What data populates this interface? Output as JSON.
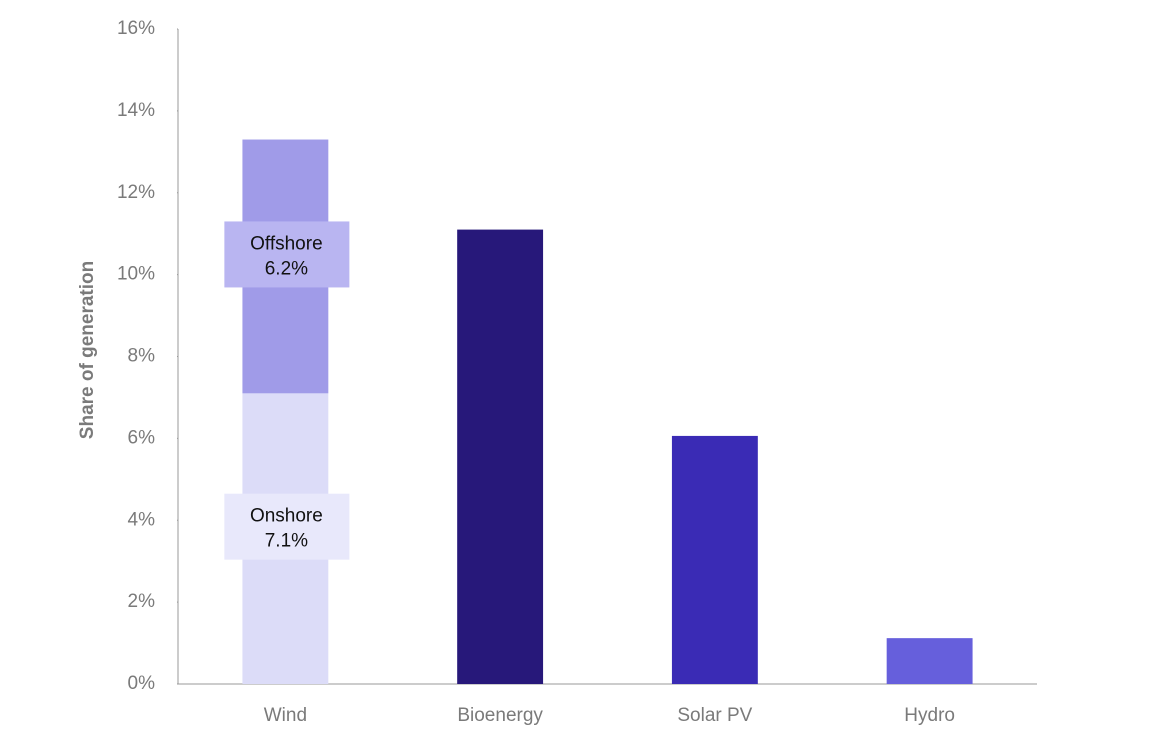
{
  "chart_data": {
    "type": "bar",
    "stacked": true,
    "y_label": "Share of generation",
    "categories": [
      "Wind",
      "Bioenergy",
      "Solar PV",
      "Hydro"
    ],
    "series": [
      {
        "name": "Onshore",
        "color": "#dcdcf8",
        "label_color": "#e8e8fb",
        "values": [
          7.1,
          null,
          null,
          null
        ],
        "value_labels": [
          "7.1%",
          null,
          null,
          null
        ]
      },
      {
        "name": "Offshore",
        "color": "#a09be8",
        "label_color": "#b9b5f1",
        "values": [
          6.2,
          null,
          null,
          null
        ],
        "value_labels": [
          "6.2%",
          null,
          null,
          null
        ]
      },
      {
        "colors": [
          null,
          "#27187a",
          "#3a2bb5",
          "#665fdc"
        ],
        "values": [
          null,
          11.1,
          6.06,
          1.12
        ]
      }
    ],
    "ylim": [
      0,
      16
    ],
    "yticks": [
      {
        "value": 0,
        "label": "0%"
      },
      {
        "value": 2,
        "label": "2%"
      },
      {
        "value": 4,
        "label": "4%"
      },
      {
        "value": 6,
        "label": "6%"
      },
      {
        "value": 8,
        "label": "8%"
      },
      {
        "value": 10,
        "label": "10%"
      },
      {
        "value": 12,
        "label": "12%"
      },
      {
        "value": 14,
        "label": "14%"
      },
      {
        "value": 16,
        "label": "16%"
      }
    ],
    "grid": false
  }
}
